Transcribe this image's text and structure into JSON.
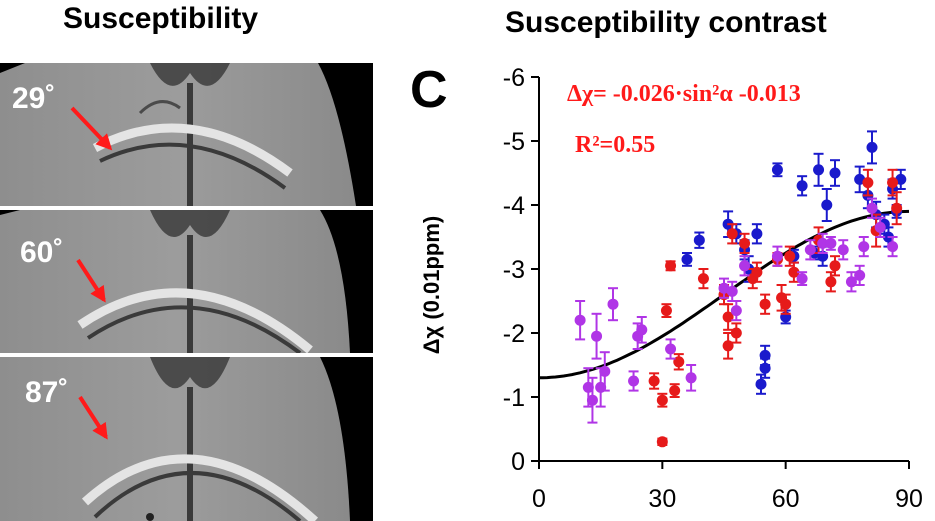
{
  "left_panel": {
    "title": "Susceptibility",
    "angle_labels": [
      "29˚",
      "60˚",
      "87˚"
    ]
  },
  "chart_data": {
    "type": "scatter",
    "panel_letter": "C",
    "title": "Susceptibility contrast",
    "xlabel": "",
    "ylabel": "Δχ (0.01ppm)",
    "xlim": [
      0,
      90
    ],
    "ylim": [
      0,
      -6
    ],
    "y_inverted": true,
    "xticks": [
      0,
      30,
      60,
      90
    ],
    "yticks": [
      0,
      -1,
      -2,
      -3,
      -4,
      -5,
      -6
    ],
    "annotations": {
      "equation": "Δχ=  -0.026·sin²α -0.013",
      "r_squared": "R²=0.55"
    },
    "colors": {
      "blue": "#1a1acc",
      "red": "#e61a1a",
      "purple": "#b035e6",
      "fit": "#000000",
      "annotation": "#ff1a1a",
      "arrow": "#ff1a1a"
    },
    "fit": {
      "a": -2.6,
      "b": -1.3,
      "note": "y = a*sin^2(x deg) + b, in 0.01ppm"
    },
    "series": [
      {
        "name": "blue",
        "color": "#1a1acc",
        "points": [
          [
            36,
            -3.15,
            0.1
          ],
          [
            39,
            -3.45,
            0.12
          ],
          [
            46,
            -3.7,
            0.2
          ],
          [
            48,
            -3.55,
            0.15
          ],
          [
            50,
            -3.3,
            0.15
          ],
          [
            51,
            -3.0,
            0.2
          ],
          [
            53,
            -3.55,
            0.15
          ],
          [
            54,
            -1.2,
            0.15
          ],
          [
            55,
            -1.65,
            0.15
          ],
          [
            55,
            -1.45,
            0.15
          ],
          [
            58,
            -4.55,
            0.1
          ],
          [
            60,
            -2.25,
            0.1
          ],
          [
            62,
            -3.2,
            0.1
          ],
          [
            64,
            -4.3,
            0.15
          ],
          [
            67,
            -3.25,
            0.1
          ],
          [
            68,
            -4.55,
            0.25
          ],
          [
            69,
            -3.2,
            0.15
          ],
          [
            70,
            -4.0,
            0.25
          ],
          [
            72,
            -4.5,
            0.2
          ],
          [
            78,
            -4.4,
            0.2
          ],
          [
            80,
            -4.15,
            0.2
          ],
          [
            81,
            -4.9,
            0.25
          ],
          [
            82,
            -3.85,
            0.2
          ],
          [
            84,
            -3.7,
            0.15
          ],
          [
            85,
            -3.5,
            0.15
          ],
          [
            86,
            -4.25,
            0.15
          ],
          [
            87,
            -3.9,
            0.1
          ],
          [
            88,
            -4.4,
            0.15
          ]
        ]
      },
      {
        "name": "red",
        "color": "#e61a1a",
        "points": [
          [
            28,
            -1.25,
            0.12
          ],
          [
            30,
            -0.3,
            0.05
          ],
          [
            30,
            -0.95,
            0.1
          ],
          [
            31,
            -2.35,
            0.1
          ],
          [
            32,
            -3.05,
            0.07
          ],
          [
            33,
            -1.1,
            0.1
          ],
          [
            34,
            -1.55,
            0.12
          ],
          [
            40,
            -2.85,
            0.15
          ],
          [
            45,
            -2.6,
            0.15
          ],
          [
            46,
            -2.25,
            0.2
          ],
          [
            46,
            -1.8,
            0.2
          ],
          [
            47,
            -3.55,
            0.15
          ],
          [
            48,
            -2.0,
            0.15
          ],
          [
            50,
            -3.4,
            0.15
          ],
          [
            52,
            -2.85,
            0.15
          ],
          [
            53,
            -2.95,
            0.15
          ],
          [
            55,
            -2.45,
            0.15
          ],
          [
            58,
            -3.15,
            0.1
          ],
          [
            59,
            -2.55,
            0.2
          ],
          [
            60,
            -2.45,
            0.15
          ],
          [
            61,
            -3.2,
            0.15
          ],
          [
            62,
            -2.95,
            0.15
          ],
          [
            68,
            -3.45,
            0.2
          ],
          [
            71,
            -2.8,
            0.15
          ],
          [
            72,
            -3.05,
            0.15
          ],
          [
            80,
            -4.35,
            0.2
          ],
          [
            82,
            -3.6,
            0.25
          ],
          [
            86,
            -4.35,
            0.2
          ],
          [
            87,
            -3.95,
            0.25
          ]
        ]
      },
      {
        "name": "purple",
        "color": "#b035e6",
        "points": [
          [
            10,
            -2.2,
            0.3
          ],
          [
            12,
            -1.15,
            0.3
          ],
          [
            13,
            -0.95,
            0.35
          ],
          [
            14,
            -1.95,
            0.35
          ],
          [
            15,
            -1.15,
            0.3
          ],
          [
            16,
            -1.4,
            0.3
          ],
          [
            18,
            -2.45,
            0.25
          ],
          [
            23,
            -1.25,
            0.15
          ],
          [
            24,
            -1.95,
            0.2
          ],
          [
            25,
            -2.05,
            0.2
          ],
          [
            32,
            -1.75,
            0.15
          ],
          [
            37,
            -1.3,
            0.2
          ],
          [
            45,
            -2.7,
            0.15
          ],
          [
            47,
            -2.65,
            0.15
          ],
          [
            48,
            -2.35,
            0.15
          ],
          [
            50,
            -3.05,
            0.15
          ],
          [
            58,
            -3.2,
            0.15
          ],
          [
            64,
            -2.85,
            0.1
          ],
          [
            66,
            -3.3,
            0.15
          ],
          [
            69,
            -3.4,
            0.15
          ],
          [
            71,
            -3.4,
            0.1
          ],
          [
            74,
            -3.3,
            0.15
          ],
          [
            76,
            -2.8,
            0.15
          ],
          [
            78,
            -2.9,
            0.15
          ],
          [
            79,
            -3.35,
            0.15
          ],
          [
            81,
            -3.95,
            0.15
          ],
          [
            83,
            -3.65,
            0.15
          ],
          [
            86,
            -3.35,
            0.15
          ]
        ]
      }
    ]
  }
}
